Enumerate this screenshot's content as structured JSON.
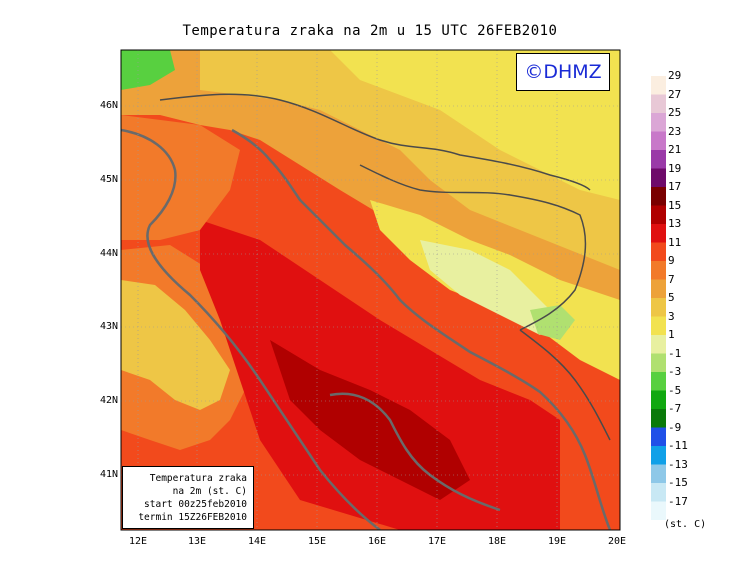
{
  "title": "Temperatura zraka na 2m u 15 UTC 26FEB2010",
  "logo_text": "©DHMZ",
  "info_box": {
    "line1": "Temperatura zraka",
    "line2": "na 2m (st. C)",
    "line3": "start 00z25feb2010",
    "line4": "termin 15Z26FEB2010"
  },
  "lat_labels": [
    "46N",
    "45N",
    "44N",
    "43N",
    "42N",
    "41N"
  ],
  "lon_labels": [
    "12E",
    "13E",
    "14E",
    "15E",
    "16E",
    "17E",
    "18E",
    "19E",
    "20E"
  ],
  "colorbar": {
    "labels": [
      "29",
      "27",
      "25",
      "23",
      "21",
      "19",
      "17",
      "15",
      "13",
      "11",
      "9",
      "7",
      "5",
      "3",
      "1",
      "-1",
      "-3",
      "-5",
      "-7",
      "-9",
      "-11",
      "-13",
      "-15",
      "-17"
    ],
    "colors": [
      "#fbeee0",
      "#e8c8d6",
      "#dba6d6",
      "#c878c9",
      "#9a3aa8",
      "#6e0a6a",
      "#7a0000",
      "#b00000",
      "#e01010",
      "#f24a1c",
      "#f27a2a",
      "#eda23a",
      "#eec646",
      "#f2e250",
      "#e8f0a0",
      "#b0e070",
      "#58d040",
      "#10a810",
      "#0a7a0a",
      "#2050e8",
      "#10a0e8",
      "#8ec8e8",
      "#c8e8f4",
      "#eaf8fc"
    ],
    "units": "(st. C)"
  },
  "colors": {
    "coast": "#6a6a6a",
    "border": "#4a4a4a",
    "grid": "#9a9a9a"
  }
}
